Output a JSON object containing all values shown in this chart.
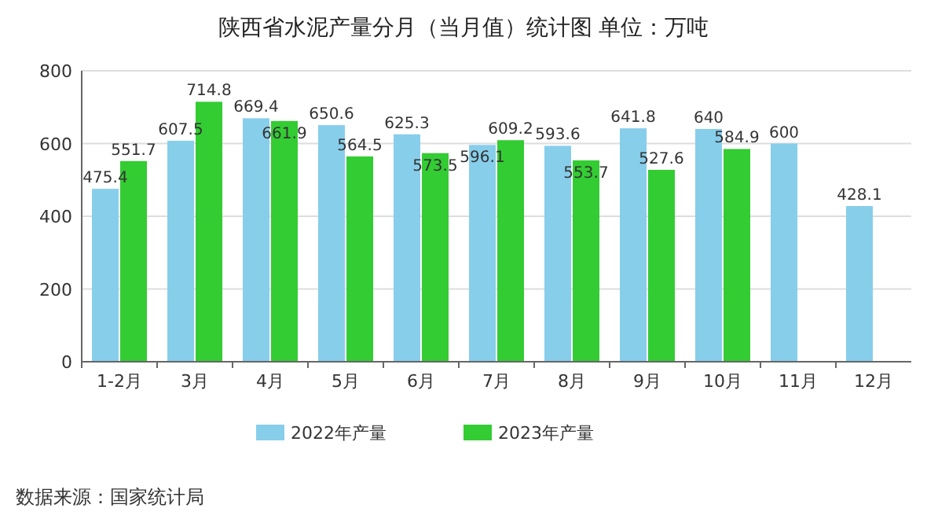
{
  "chart_data": {
    "type": "bar",
    "title": "陕西省水泥产量分月（当月值）统计图 单位：万吨",
    "categories": [
      "1-2月",
      "3月",
      "4月",
      "5月",
      "6月",
      "7月",
      "8月",
      "9月",
      "10月",
      "11月",
      "12月"
    ],
    "series": [
      {
        "name": "2022年产量",
        "color": "#87ceeb",
        "values": [
          475.4,
          607.5,
          669.4,
          650.6,
          625.3,
          596.1,
          593.6,
          641.8,
          640,
          600,
          428.1
        ]
      },
      {
        "name": "2023年产量",
        "color": "#33cc33",
        "values": [
          551.7,
          714.8,
          661.9,
          564.5,
          573.5,
          609.2,
          553.7,
          527.6,
          584.9,
          null,
          null
        ]
      }
    ],
    "ylim": [
      0,
      800
    ],
    "yticks": [
      0,
      200,
      400,
      600,
      800
    ],
    "grid": "y",
    "legend": "bottom",
    "data_labels": true,
    "annotations": [
      "数据来源：国家统计局"
    ]
  }
}
